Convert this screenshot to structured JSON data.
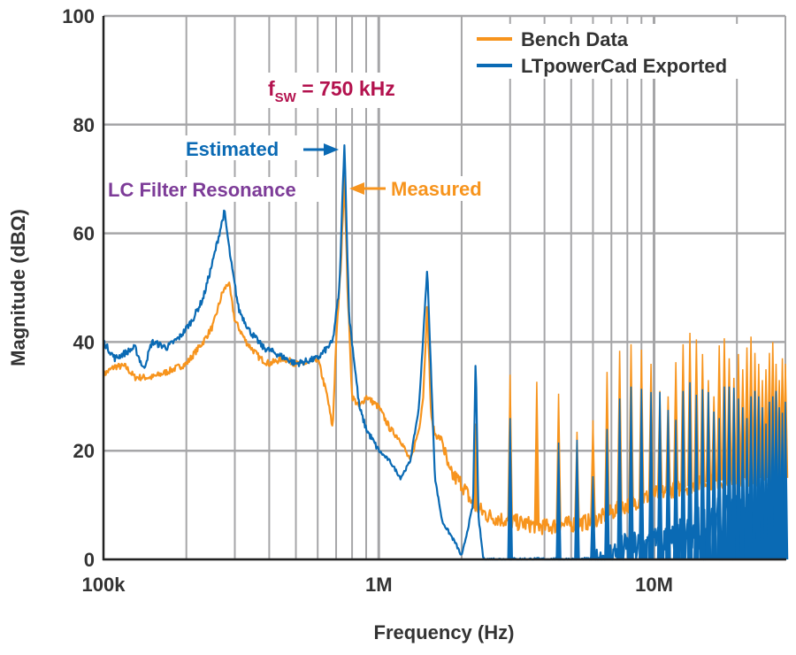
{
  "chart_data": {
    "type": "line",
    "xlabel": "Frequency (Hz)",
    "ylabel": "Magnitude (dBΩ)",
    "xscale": "log",
    "xlim": [
      100000,
      30000000
    ],
    "ylim": [
      0,
      100
    ],
    "grid": true,
    "legend_position": "top-right",
    "x_tick_labels": [
      {
        "value": 100000,
        "label": "100k"
      },
      {
        "value": 1000000,
        "label": "1M"
      },
      {
        "value": 10000000,
        "label": "10M"
      }
    ],
    "y_ticks": [
      0,
      20,
      40,
      60,
      80,
      100
    ],
    "colors": {
      "bench": "#F7941D",
      "ltpowercad": "#0A6AB4",
      "fsw": "#B3124E",
      "lc": "#7D3C98"
    },
    "switching_frequency_hz": 750000,
    "series": [
      {
        "name": "Bench Data",
        "color": "#F7941D",
        "points": [
          [
            100000,
            34
          ],
          [
            110000,
            35.5
          ],
          [
            120000,
            35.5
          ],
          [
            130000,
            33.5
          ],
          [
            150000,
            33.5
          ],
          [
            170000,
            34.5
          ],
          [
            200000,
            36
          ],
          [
            230000,
            40
          ],
          [
            250000,
            43
          ],
          [
            270000,
            49
          ],
          [
            285000,
            51
          ],
          [
            300000,
            44
          ],
          [
            330000,
            40
          ],
          [
            370000,
            37
          ],
          [
            400000,
            36
          ],
          [
            450000,
            37
          ],
          [
            500000,
            36
          ],
          [
            550000,
            36
          ],
          [
            600000,
            37
          ],
          [
            650000,
            30
          ],
          [
            680000,
            24
          ],
          [
            700000,
            40
          ],
          [
            730000,
            55
          ],
          [
            750000,
            71
          ],
          [
            770000,
            50
          ],
          [
            800000,
            30
          ],
          [
            850000,
            28
          ],
          [
            900000,
            30
          ],
          [
            1000000,
            28
          ],
          [
            1100000,
            24
          ],
          [
            1200000,
            22
          ],
          [
            1300000,
            18
          ],
          [
            1400000,
            24
          ],
          [
            1450000,
            30
          ],
          [
            1500000,
            47
          ],
          [
            1550000,
            26
          ],
          [
            1600000,
            23
          ],
          [
            1700000,
            22
          ],
          [
            1800000,
            16
          ],
          [
            2000000,
            14
          ],
          [
            2200000,
            10
          ],
          [
            2500000,
            8
          ],
          [
            3000000,
            7
          ],
          [
            4000000,
            6
          ],
          [
            5000000,
            6.5
          ],
          [
            6000000,
            7
          ],
          [
            8000000,
            10
          ],
          [
            10000000,
            12
          ],
          [
            15000000,
            14
          ],
          [
            20000000,
            15
          ],
          [
            30000000,
            15
          ]
        ],
        "harmonic_peaks_db": [
          71,
          47,
          25,
          34,
          32.7,
          30.5,
          23.5,
          25.6,
          34.5,
          38.4,
          39.6,
          38.6,
          36,
          31,
          30,
          36.3,
          39.6,
          41.7,
          40.5,
          37.8,
          33,
          30,
          39.4,
          40.7,
          37,
          33.4,
          37.8,
          35,
          39,
          41,
          38,
          36,
          33,
          35,
          38,
          40,
          36,
          33,
          37,
          36
        ]
      },
      {
        "name": "LTpowerCad Exported",
        "color": "#0A6AB4",
        "points": [
          [
            100000,
            40
          ],
          [
            110000,
            37
          ],
          [
            120000,
            38
          ],
          [
            130000,
            39
          ],
          [
            140000,
            35
          ],
          [
            150000,
            40
          ],
          [
            170000,
            39
          ],
          [
            190000,
            41
          ],
          [
            210000,
            44
          ],
          [
            230000,
            48
          ],
          [
            250000,
            55
          ],
          [
            275000,
            64
          ],
          [
            290000,
            55
          ],
          [
            310000,
            46
          ],
          [
            340000,
            42
          ],
          [
            380000,
            39
          ],
          [
            420000,
            38
          ],
          [
            500000,
            36
          ],
          [
            600000,
            37
          ],
          [
            680000,
            40
          ],
          [
            720000,
            50
          ],
          [
            750000,
            77
          ],
          [
            780000,
            45
          ],
          [
            850000,
            28
          ],
          [
            900000,
            24
          ],
          [
            1000000,
            20
          ],
          [
            1100000,
            18
          ],
          [
            1200000,
            15
          ],
          [
            1300000,
            18
          ],
          [
            1400000,
            28
          ],
          [
            1500000,
            53.5
          ],
          [
            1600000,
            15
          ],
          [
            1700000,
            7
          ],
          [
            1900000,
            3
          ],
          [
            2000000,
            0.5
          ],
          [
            2200000,
            10
          ],
          [
            2250000,
            38
          ],
          [
            2300000,
            8
          ],
          [
            2400000,
            0
          ],
          [
            6000000,
            0
          ],
          [
            8000000,
            2
          ],
          [
            12000000,
            3
          ],
          [
            15000000,
            5
          ],
          [
            20000000,
            6
          ],
          [
            30000000,
            6
          ]
        ],
        "harmonic_peaks_db": [
          77,
          53.5,
          38,
          26,
          0,
          21.5,
          22,
          15.3,
          24,
          29.6,
          31.8,
          31.4,
          30.8,
          30.8,
          27.5,
          25.7,
          31,
          32.6,
          30.3,
          31.3,
          30.8,
          27.2,
          26,
          31.8,
          31.8,
          31.6,
          29.6,
          28,
          26,
          30,
          31,
          30,
          28,
          25,
          29,
          30,
          31,
          28,
          27,
          29
        ]
      }
    ],
    "legend": [
      "Bench Data",
      "LTpowerCad Exported"
    ],
    "annotations": {
      "fsw_main": "f",
      "fsw_sub": "SW",
      "fsw_value": " = 750 kHz",
      "estimated": "Estimated",
      "measured": "Measured",
      "lc_resonance": "LC Filter Resonance"
    }
  }
}
